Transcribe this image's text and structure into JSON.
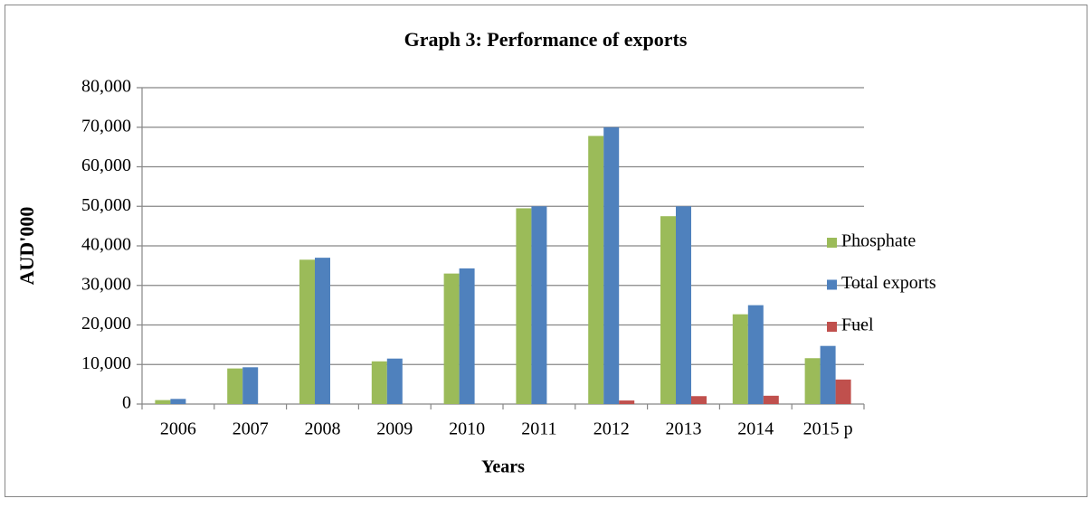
{
  "chart_data": {
    "type": "bar",
    "title": "Graph 3:  Performance of exports",
    "y_label": "AUD'000",
    "x_label": "Years",
    "categories": [
      "2006",
      "2007",
      "2008",
      "2009",
      "2010",
      "2011",
      "2012",
      "2013",
      "2014",
      "2015 p"
    ],
    "series": [
      {
        "name": "Phosphate",
        "color": "#9bbb59",
        "values": [
          1000,
          9000,
          36500,
          10800,
          33000,
          49500,
          67800,
          47500,
          22700,
          11600
        ]
      },
      {
        "name": "Total exports",
        "color": "#4f81bd",
        "values": [
          1300,
          9300,
          37000,
          11500,
          34300,
          50000,
          70000,
          50000,
          25000,
          14700
        ]
      },
      {
        "name": "Fuel",
        "color": "#c0504d",
        "values": [
          null,
          null,
          null,
          null,
          null,
          null,
          900,
          2000,
          2100,
          6200
        ]
      }
    ],
    "ylim": [
      0,
      80000
    ],
    "yticks": [
      0,
      {
        "value": 10000,
        "label": "10,000"
      },
      {
        "value": 20000,
        "label": "20,000"
      },
      {
        "value": 30000,
        "label": "30,000"
      },
      {
        "value": 40000,
        "label": "40,000"
      },
      {
        "value": 50000,
        "label": "50,000"
      },
      {
        "value": 60000,
        "label": "60,000"
      },
      {
        "value": 70000,
        "label": "70,000"
      },
      {
        "value": 80000,
        "label": "80,000"
      }
    ],
    "grid": true,
    "legend": "right"
  }
}
